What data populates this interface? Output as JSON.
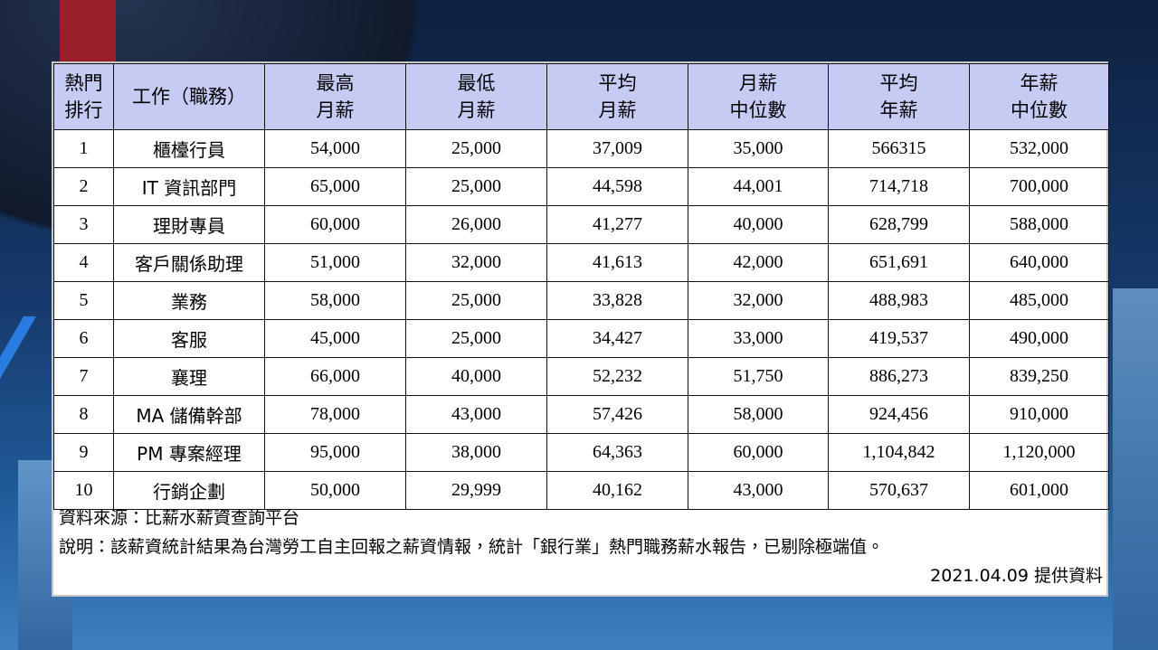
{
  "table": {
    "header": [
      [
        "熱門",
        "排行"
      ],
      [
        "工作（職務）"
      ],
      [
        "最高",
        "月薪"
      ],
      [
        "最低",
        "月薪"
      ],
      [
        "平均",
        "月薪"
      ],
      [
        "月薪",
        "中位數"
      ],
      [
        "平均",
        "年薪"
      ],
      [
        "年薪",
        "中位數"
      ]
    ],
    "rows": [
      [
        "1",
        "櫃檯行員",
        "54,000",
        "25,000",
        "37,009",
        "35,000",
        "566315",
        "532,000"
      ],
      [
        "2",
        "IT 資訊部門",
        "65,000",
        "25,000",
        "44,598",
        "44,001",
        "714,718",
        "700,000"
      ],
      [
        "3",
        "理財專員",
        "60,000",
        "26,000",
        "41,277",
        "40,000",
        "628,799",
        "588,000"
      ],
      [
        "4",
        "客戶關係助理",
        "51,000",
        "32,000",
        "41,613",
        "42,000",
        "651,691",
        "640,000"
      ],
      [
        "5",
        "業務",
        "58,000",
        "25,000",
        "33,828",
        "32,000",
        "488,983",
        "485,000"
      ],
      [
        "6",
        "客服",
        "45,000",
        "25,000",
        "34,427",
        "33,000",
        "419,537",
        "490,000"
      ],
      [
        "7",
        "襄理",
        "66,000",
        "40,000",
        "52,232",
        "51,750",
        "886,273",
        "839,250"
      ],
      [
        "8",
        "MA 儲備幹部",
        "78,000",
        "43,000",
        "57,426",
        "58,000",
        "924,456",
        "910,000"
      ],
      [
        "9",
        "PM 專案經理",
        "95,000",
        "38,000",
        "64,363",
        "60,000",
        "1,104,842",
        "1,120,000"
      ],
      [
        "10",
        "行銷企劃",
        "50,000",
        "29,999",
        "40,162",
        "43,000",
        "570,637",
        "601,000"
      ]
    ]
  },
  "footer": {
    "source": "資料來源：比薪水薪資查詢平台",
    "note": "說明：該薪資統計結果為台灣勞工自主回報之薪資情報，統計「銀行業」熱門職務薪水報告，已剔除極端值。",
    "date": "2021.04.09 提供資料"
  }
}
